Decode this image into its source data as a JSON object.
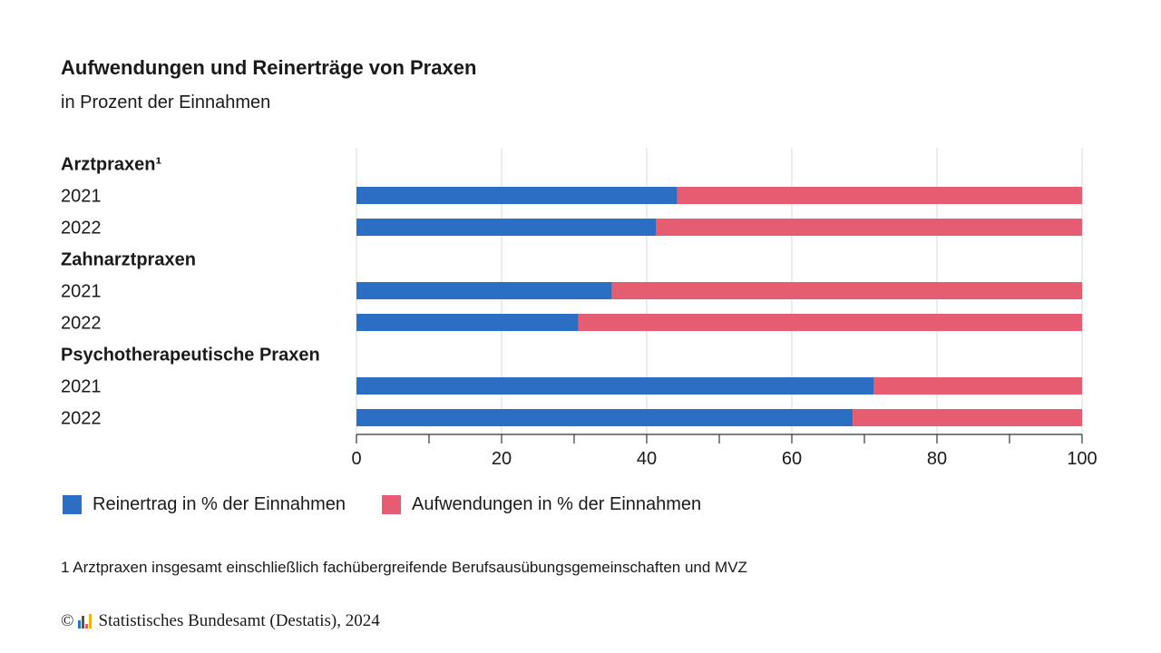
{
  "colors": {
    "reinertrag": "#2a6fc4",
    "aufwendungen": "#e65c70",
    "grid": "#d9d9d9",
    "axis": "#333333"
  },
  "chart_data": {
    "type": "bar",
    "stacked": true,
    "orientation": "horizontal",
    "title": "Aufwendungen und Reinerträge von Praxen",
    "subtitle": "in Prozent der Einnahmen",
    "xlim": [
      0,
      100
    ],
    "xticks": [
      0,
      20,
      40,
      60,
      80,
      100
    ],
    "groups": [
      {
        "label": "Arztpraxen¹",
        "rows": [
          {
            "label": "2021",
            "values": [
              44.2,
              55.8
            ]
          },
          {
            "label": "2022",
            "values": [
              41.3,
              58.7
            ]
          }
        ]
      },
      {
        "label": "Zahnarztpraxen",
        "rows": [
          {
            "label": "2021",
            "values": [
              35.2,
              64.8
            ]
          },
          {
            "label": "2022",
            "values": [
              30.6,
              69.4
            ]
          }
        ]
      },
      {
        "label": "Psychotherapeutische Praxen",
        "rows": [
          {
            "label": "2021",
            "values": [
              71.3,
              28.7
            ]
          },
          {
            "label": "2022",
            "values": [
              68.4,
              31.6
            ]
          }
        ]
      }
    ],
    "series": [
      {
        "name": "Reinertrag in % der Einnahmen"
      },
      {
        "name": "Aufwendungen in % der Einnahmen"
      }
    ]
  },
  "footnote": "1 Arztpraxen insgesamt einschließlich fachübergreifende Berufsausübungsgemeinschaften und MVZ",
  "source": {
    "copyright": "©",
    "text": "Statistisches Bundesamt (Destatis), 2024"
  }
}
